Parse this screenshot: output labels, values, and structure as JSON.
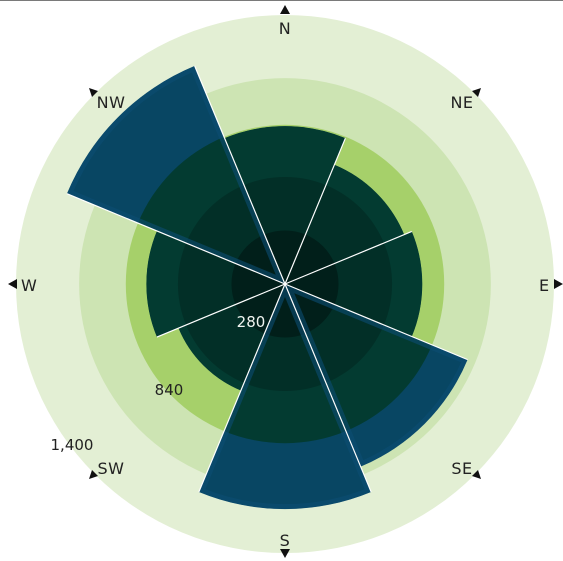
{
  "chart_data": {
    "type": "polar-area",
    "directions": [
      "N",
      "NE",
      "E",
      "SE",
      "S",
      "SW",
      "W",
      "NW"
    ],
    "values": [
      1150,
      940,
      1000,
      1440,
      1640,
      840,
      1010,
      1720
    ],
    "radial_ticks": [
      280,
      840,
      1400
    ],
    "rmax": 1960,
    "colors": {
      "ring_outer": "#e3efd4",
      "ring_mid": "#cde4b3",
      "ring_inner": "#a6d06a",
      "sector_dark": "#033b31",
      "sector_mid": "#022f27",
      "sector_core": "#011f1a",
      "sector_blue": "#084663",
      "sector_blue_edge": "#0b4d73",
      "arrow": "#111111",
      "text": "#222222"
    }
  }
}
